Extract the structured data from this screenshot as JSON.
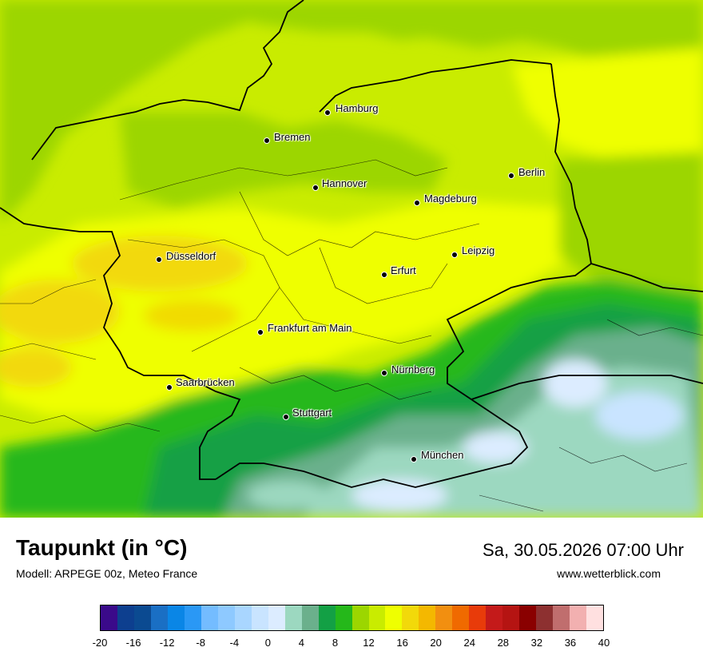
{
  "title": "Taupunkt (in °C)",
  "model": "Modell: ARPEGE 00z, Meteo France",
  "datetime": "Sa, 30.05.2026 07:00 Uhr",
  "site": "www.wetterblick.com",
  "cities": [
    {
      "name": "Hamburg"
    },
    {
      "name": "Bremen"
    },
    {
      "name": "Hannover"
    },
    {
      "name": "Berlin"
    },
    {
      "name": "Magdeburg"
    },
    {
      "name": "Düsseldorf"
    },
    {
      "name": "Leipzig"
    },
    {
      "name": "Erfurt"
    },
    {
      "name": "Frankfurt am Main"
    },
    {
      "name": "Nürnberg"
    },
    {
      "name": "Saarbrücken"
    },
    {
      "name": "Stuttgart"
    },
    {
      "name": "München"
    }
  ],
  "legend": {
    "colors": [
      "#3a0a8a",
      "#0d3f8f",
      "#0b4a91",
      "#1a6fc4",
      "#0a86e6",
      "#2a98f5",
      "#74bcff",
      "#8ec9ff",
      "#a9d6ff",
      "#c9e4ff",
      "#dcecff",
      "#9cd8c0",
      "#6bb08c",
      "#13a045",
      "#25b81a",
      "#9cd600",
      "#c9ec00",
      "#efff00",
      "#f2d90a",
      "#f4b800",
      "#f28f10",
      "#f06a00",
      "#e83b0a",
      "#c41a1a",
      "#b51412",
      "#8a0000",
      "#8d3030",
      "#c06e6e",
      "#f2b0b0",
      "#ffe0e0"
    ],
    "ticks": [
      "-20",
      "-16",
      "-12",
      "-8",
      "-4",
      "0",
      "4",
      "8",
      "12",
      "16",
      "20",
      "24",
      "28",
      "32",
      "36",
      "40"
    ]
  }
}
